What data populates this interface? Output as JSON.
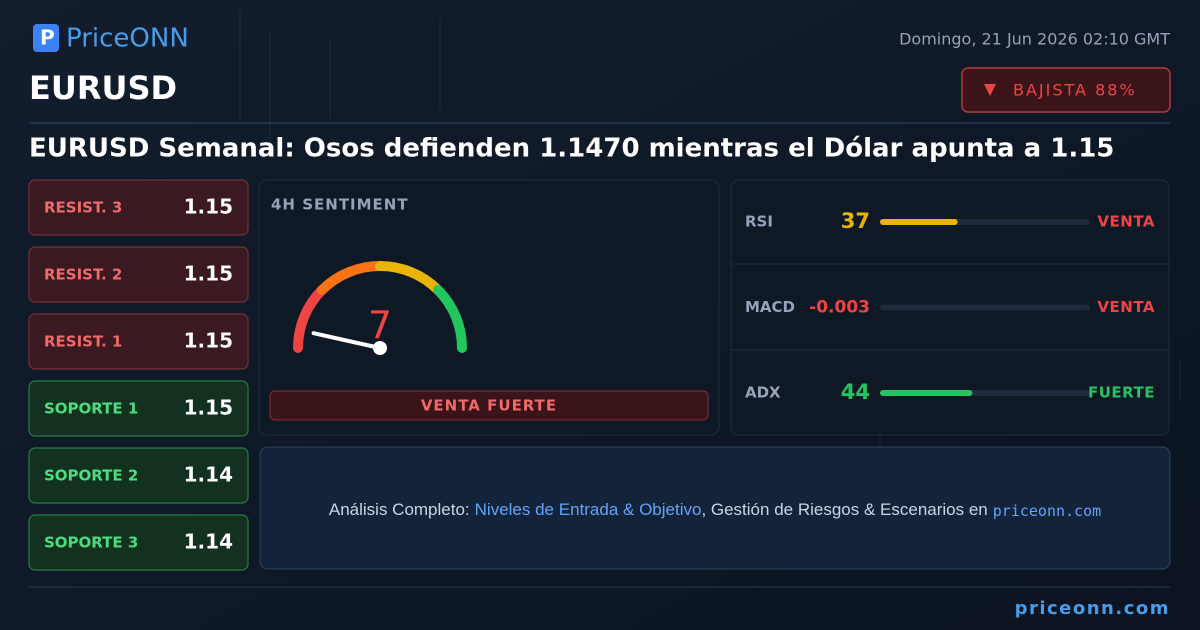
{
  "header": {
    "logo": "PriceONN",
    "date": "Domingo, 21 Jun 2026 02:10 GMT",
    "symbol": "EURUSD",
    "badge": "BAJISTA 88%",
    "headline": "EURUSD Semanal: Osos defienden 1.1470 mientras el Dólar apunta a 1.15"
  },
  "levels": [
    {
      "label": "RESIST. 3",
      "value": "1.15",
      "kind": "resist"
    },
    {
      "label": "RESIST. 2",
      "value": "1.15",
      "kind": "resist"
    },
    {
      "label": "RESIST. 1",
      "value": "1.15",
      "kind": "resist"
    },
    {
      "label": "SOPORTE 1",
      "value": "1.15",
      "kind": "support"
    },
    {
      "label": "SOPORTE 2",
      "value": "1.14",
      "kind": "support"
    },
    {
      "label": "SOPORTE 3",
      "value": "1.14",
      "kind": "support"
    }
  ],
  "sentiment": {
    "title": "4H SENTIMENT",
    "value": 7,
    "verdict": "VENTA FUERTE"
  },
  "indicators": [
    {
      "name": "RSI",
      "value": 37,
      "status": "VENTA",
      "color": "#eab308",
      "status_color": "#ef4444"
    },
    {
      "name": "MACD",
      "value": -0.003,
      "status": "VENTA",
      "color": "#ef4444",
      "status_color": "#ef4444"
    },
    {
      "name": "ADX",
      "value": 44,
      "status": "FUERTE",
      "color": "#22c55e",
      "status_color": "#22c55e"
    }
  ],
  "cta": {
    "lead": "Análisis Completo:",
    "link": "Niveles de Entrada & Objetivo",
    "middle": ", Gestión de Riesgos & Escenarios en",
    "site": "priceonn.com"
  },
  "footer": {
    "site": "priceonn.com"
  }
}
